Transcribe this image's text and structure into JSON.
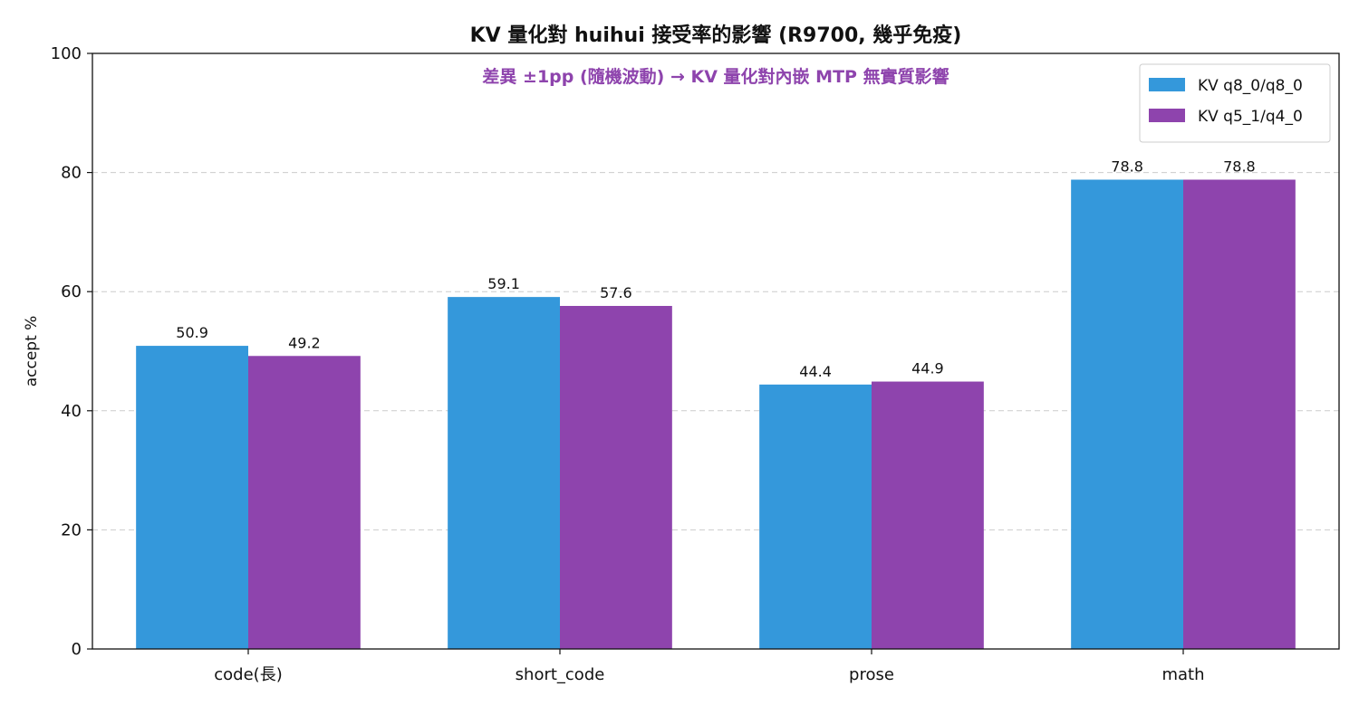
{
  "chart_data": {
    "type": "bar",
    "title": "KV 量化對 huihui 接受率的影響 (R9700, 幾乎免疫)",
    "subtitle": "差異 ±1pp (隨機波動) → KV 量化對內嵌 MTP 無實質影響",
    "xlabel": "",
    "ylabel": "accept %",
    "ylim": [
      0,
      100
    ],
    "yticks": [
      0,
      20,
      40,
      60,
      80,
      100
    ],
    "grid": true,
    "legend_position": "top-right",
    "categories": [
      "code(長)",
      "short_code",
      "prose",
      "math"
    ],
    "series": [
      {
        "name": "KV q8_0/q8_0",
        "color": "#3498db",
        "values": [
          50.9,
          59.1,
          44.4,
          78.8
        ]
      },
      {
        "name": "KV q5_1/q4_0",
        "color": "#8e44ad",
        "values": [
          49.2,
          57.6,
          44.9,
          78.8
        ]
      }
    ],
    "subtitle_color": "#8e44ad"
  }
}
